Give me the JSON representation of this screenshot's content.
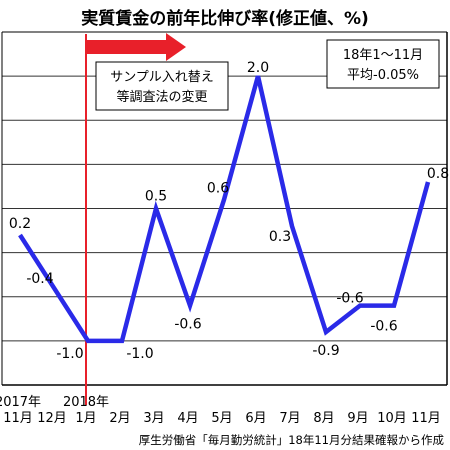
{
  "chart_data": {
    "type": "line",
    "title": "実質賃金の前年比伸び率(修正値、%)",
    "x": [
      "2017年11月",
      "12月",
      "2018年1月",
      "2月",
      "3月",
      "4月",
      "5月",
      "6月",
      "7月",
      "8月",
      "9月",
      "10月",
      "11月"
    ],
    "x_tick_labels": [
      "11月",
      "12月",
      "1月",
      "2月",
      "3月",
      "4月",
      "5月",
      "6月",
      "7月",
      "8月",
      "9月",
      "10月",
      "11月"
    ],
    "year_labels": [
      {
        "text": "2017年",
        "index": 0
      },
      {
        "text": "2018年",
        "index": 2
      }
    ],
    "series": [
      {
        "values": [
          0.2,
          -0.4,
          -1.0,
          -1.0,
          0.5,
          -0.6,
          0.6,
          2.0,
          0.3,
          -0.9,
          -0.6,
          -0.6,
          0.8
        ],
        "data_labels": [
          "0.2",
          "-0.4",
          "-1.0",
          "-1.0",
          "0.5",
          "-0.6",
          "0.6",
          "2.0",
          "0.3",
          "-0.9",
          "-0.6",
          "-0.6",
          "0.8"
        ],
        "color": "#2a2ae8"
      }
    ],
    "ylim": [
      -1.5,
      2.5
    ],
    "y_gridlines": [
      -1.5,
      -1.0,
      -0.5,
      0.0,
      0.5,
      1.0,
      1.5,
      2.0
    ],
    "grid": true,
    "xlabel": "",
    "ylabel": "",
    "annotations": {
      "method_change": {
        "at_index": 2,
        "text_lines": [
          "サンプル入れ替え",
          "等調査法の変更"
        ],
        "color": "#e8202a"
      },
      "average_box": {
        "text_lines": [
          "18年1～11月",
          "平均-0.05%"
        ]
      }
    },
    "source": "厚生労働省「毎月勤労統計」18年11月分結果確報から作成"
  }
}
